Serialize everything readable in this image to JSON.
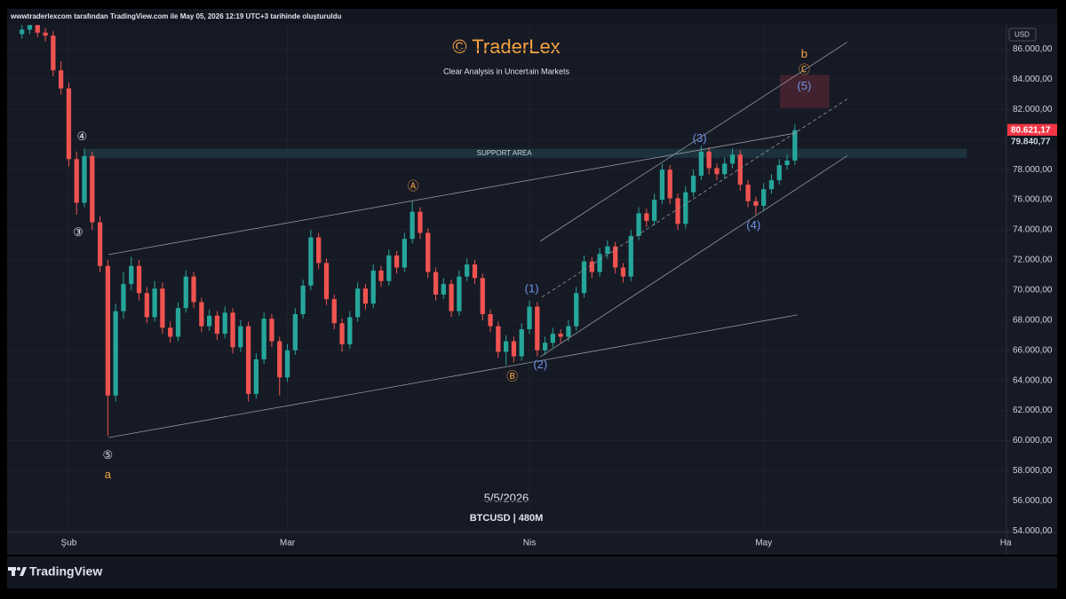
{
  "header": "wwwtraderlexcom tarafından TradingView.com ile May 05, 2026 12:19 UTC+3 tarihinde oluşturuldu",
  "footer": "TradingView",
  "chart_data": {
    "type": "candlestick",
    "title": "© TraderLex",
    "subtitle": "Clear Analysis in Uncertain Markets",
    "date_label": "5/5/2026",
    "symbol_label": "BTCUSD | 480M",
    "currency": "USD",
    "up_color": "#26a69a",
    "down_color": "#ef5350",
    "grid": true,
    "xlim": [
      -7.9,
      120.1
    ],
    "xticks": [
      {
        "value": 0,
        "label": "Şub"
      },
      {
        "value": 28,
        "label": "Mar"
      },
      {
        "value": 59,
        "label": "Nis"
      },
      {
        "value": 89,
        "label": "May"
      },
      {
        "value": 120,
        "label": "Ha"
      }
    ],
    "ylim": [
      53900,
      87500
    ],
    "yticks": [
      {
        "value": 54000,
        "label": "54.000,00"
      },
      {
        "value": 56000,
        "label": "56.000,00"
      },
      {
        "value": 58000,
        "label": "58.000,00"
      },
      {
        "value": 60000,
        "label": "60.000,00"
      },
      {
        "value": 62000,
        "label": "62.000,00"
      },
      {
        "value": 64000,
        "label": "64.000,00"
      },
      {
        "value": 66000,
        "label": "66.000,00"
      },
      {
        "value": 68000,
        "label": "68.000,00"
      },
      {
        "value": 70000,
        "label": "70.000,00"
      },
      {
        "value": 72000,
        "label": "72.000,00"
      },
      {
        "value": 74000,
        "label": "74.000,00"
      },
      {
        "value": 76000,
        "label": "76.000,00"
      },
      {
        "value": 78000,
        "label": "78.000,00"
      },
      {
        "value": 80000,
        "label": "80.000,00"
      },
      {
        "value": 82000,
        "label": "82.000,00"
      },
      {
        "value": 84000,
        "label": "84.000,00"
      },
      {
        "value": 86000,
        "label": "86.000,00"
      }
    ],
    "x": [
      -6,
      -5,
      -4,
      -3,
      -2,
      -1,
      0,
      1,
      2,
      3,
      4,
      5,
      6,
      7,
      8,
      9,
      10,
      11,
      12,
      13,
      14,
      15,
      16,
      17,
      18,
      19,
      20,
      21,
      22,
      23,
      24,
      25,
      26,
      27,
      28,
      29,
      30,
      31,
      32,
      33,
      34,
      35,
      36,
      37,
      38,
      39,
      40,
      41,
      42,
      43,
      44,
      45,
      46,
      47,
      48,
      49,
      50,
      51,
      52,
      53,
      54,
      55,
      56,
      57,
      58,
      59,
      60,
      61,
      62,
      63,
      64,
      65,
      66,
      67,
      68,
      69,
      70,
      71,
      72,
      73,
      74,
      75,
      76,
      77,
      78,
      79,
      80,
      81,
      82,
      83,
      84,
      85,
      86,
      87,
      88,
      89,
      90,
      91,
      92,
      93
    ],
    "open": [
      87000,
      87300,
      87600,
      87100,
      86900,
      84600,
      83400,
      78700,
      75800,
      78900,
      74500,
      71600,
      63000,
      68600,
      70400,
      71600,
      69800,
      68200,
      70100,
      67500,
      66900,
      68800,
      70900,
      69200,
      67600,
      68300,
      67100,
      68500,
      66200,
      67600,
      63100,
      65400,
      68100,
      66600,
      64200,
      66000,
      68400,
      70300,
      73500,
      71800,
      69400,
      67800,
      66400,
      68200,
      70100,
      69100,
      71300,
      70600,
      72300,
      71500,
      73400,
      75200,
      73800,
      71200,
      69700,
      70400,
      68600,
      70900,
      71700,
      70800,
      68400,
      67600,
      65900,
      66600,
      65600,
      67400,
      68900,
      66000,
      66500,
      67100,
      66900,
      67600,
      69800,
      71900,
      71200,
      72400,
      72900,
      71500,
      70900,
      73600,
      75100,
      74600,
      76000,
      78000,
      76100,
      74400,
      76500,
      77600,
      79200,
      78100,
      77700,
      78400,
      79000,
      77000,
      75900,
      75600,
      76700,
      77300,
      78300,
      78600
    ],
    "high": [
      87600,
      87900,
      87900,
      87400,
      87200,
      85200,
      83800,
      79200,
      79400,
      79200,
      74900,
      72000,
      69100,
      71200,
      72200,
      72000,
      70200,
      70600,
      70500,
      67900,
      69200,
      71300,
      71200,
      69500,
      68700,
      68600,
      68900,
      68800,
      68000,
      67900,
      65800,
      68500,
      68400,
      66900,
      66400,
      68800,
      70700,
      74000,
      73800,
      72100,
      69700,
      68100,
      68600,
      70500,
      70400,
      71700,
      71600,
      72700,
      72600,
      73800,
      75900,
      75500,
      74100,
      71500,
      70800,
      70700,
      71300,
      72100,
      72000,
      71100,
      68700,
      67900,
      67000,
      66900,
      67800,
      69300,
      69200,
      66900,
      67500,
      67400,
      68000,
      70200,
      72300,
      72200,
      72800,
      73300,
      73200,
      71800,
      74000,
      75500,
      75400,
      76400,
      78400,
      78300,
      76400,
      76900,
      78000,
      79600,
      79500,
      78400,
      78800,
      79400,
      79300,
      77300,
      76200,
      77100,
      77700,
      78700,
      79000,
      81000
    ],
    "low": [
      86700,
      87000,
      86800,
      86500,
      84200,
      83000,
      78200,
      75000,
      75500,
      74000,
      71200,
      60300,
      62600,
      68100,
      70000,
      69300,
      67800,
      67900,
      67100,
      66500,
      66600,
      68500,
      68800,
      67200,
      67300,
      66700,
      66800,
      65800,
      65900,
      62600,
      62800,
      65100,
      66200,
      63000,
      63900,
      65700,
      68100,
      70000,
      71400,
      69000,
      67400,
      65900,
      66100,
      67900,
      68700,
      68800,
      70200,
      70300,
      71100,
      71200,
      73100,
      73400,
      70800,
      69300,
      69400,
      68200,
      68300,
      70600,
      70400,
      68000,
      67200,
      65500,
      65000,
      65200,
      65300,
      67100,
      65600,
      65700,
      66200,
      66500,
      66600,
      67300,
      69500,
      70800,
      70900,
      72100,
      71100,
      70500,
      70600,
      73300,
      74200,
      74300,
      75700,
      75700,
      74000,
      74100,
      76200,
      77300,
      77700,
      77300,
      77400,
      78100,
      76600,
      75500,
      75000,
      75300,
      76400,
      77000,
      78000,
      78300
    ],
    "close": [
      87300,
      87600,
      87100,
      86900,
      84600,
      83400,
      78700,
      75800,
      78900,
      74500,
      71600,
      63000,
      68600,
      70400,
      71600,
      69800,
      68200,
      70100,
      67500,
      66900,
      68800,
      70900,
      69200,
      67600,
      68300,
      67100,
      68500,
      66200,
      67600,
      63100,
      65400,
      68100,
      66600,
      64200,
      66000,
      68400,
      70300,
      73500,
      71800,
      69400,
      67800,
      66400,
      68200,
      70100,
      69100,
      71300,
      70600,
      72300,
      71500,
      73400,
      75200,
      73800,
      71200,
      69700,
      70400,
      68600,
      70900,
      71700,
      70800,
      68400,
      67600,
      65900,
      66600,
      65600,
      67400,
      68900,
      66000,
      66500,
      67100,
      66900,
      67600,
      69800,
      71900,
      71200,
      72400,
      72900,
      71500,
      70900,
      73600,
      75100,
      74600,
      76000,
      78000,
      76100,
      74400,
      76500,
      77600,
      79200,
      78100,
      77700,
      78400,
      79000,
      77000,
      75900,
      75600,
      76700,
      77300,
      78300,
      78600,
      80621.17
    ],
    "price_labels": [
      {
        "value": 80621.17,
        "label": "80.621,17",
        "color": "#f23645"
      },
      {
        "value": 79840.77,
        "label": "79.840,77",
        "color": "#d1d4dc"
      }
    ],
    "support_area": {
      "label": "SUPPORT AREA",
      "x": [
        2,
        115
      ],
      "y": [
        78790,
        79390
      ],
      "color": "#1e3a44"
    },
    "target_zone": {
      "x": [
        91.1,
        97.4
      ],
      "y": [
        82100,
        84290
      ],
      "color": "#4a2430"
    },
    "trendlines": [
      {
        "x": [
          5.1,
          93.3
        ],
        "y": [
          72360,
          80450
        ],
        "dashed": false
      },
      {
        "x": [
          5.1,
          93.3
        ],
        "y": [
          60200,
          68350
        ],
        "dashed": false
      },
      {
        "x": [
          60.4,
          99.7
        ],
        "y": [
          73250,
          86470
        ],
        "dashed": false
      },
      {
        "x": [
          60.4,
          99.7
        ],
        "y": [
          65570,
          78920
        ],
        "dashed": false
      },
      {
        "x": [
          60.6,
          99.7
        ],
        "y": [
          69530,
          82690
        ],
        "dashed": true
      }
    ],
    "annotations": [
      {
        "label": "④",
        "x": 1.7,
        "y": 80150,
        "color": "#e0e3eb"
      },
      {
        "label": "③",
        "x": 1.2,
        "y": 73780,
        "color": "#e0e3eb"
      },
      {
        "label": "⑤",
        "x": 5,
        "y": 59000,
        "color": "#e0e3eb"
      },
      {
        "label": "a",
        "x": 5,
        "y": 57700,
        "color": "#f7a440"
      },
      {
        "label": "Ⓐ",
        "x": 44.1,
        "y": 76850,
        "color": "#f7a440"
      },
      {
        "label": "Ⓑ",
        "x": 56.8,
        "y": 64200,
        "color": "#f7a440"
      },
      {
        "label": "(1)",
        "x": 59.3,
        "y": 70060,
        "color": "#6f93e8"
      },
      {
        "label": "(2)",
        "x": 60.4,
        "y": 65000,
        "color": "#6f93e8"
      },
      {
        "label": "(3)",
        "x": 80.8,
        "y": 80040,
        "color": "#6f93e8"
      },
      {
        "label": "(4)",
        "x": 87.7,
        "y": 74250,
        "color": "#6f93e8"
      },
      {
        "label": "(5)",
        "x": 94.2,
        "y": 83520,
        "color": "#6f93e8"
      },
      {
        "label": "Ⓒ",
        "x": 94.2,
        "y": 84580,
        "color": "#f7a440"
      },
      {
        "label": "b",
        "x": 94.2,
        "y": 85650,
        "color": "#f7a440"
      }
    ]
  }
}
